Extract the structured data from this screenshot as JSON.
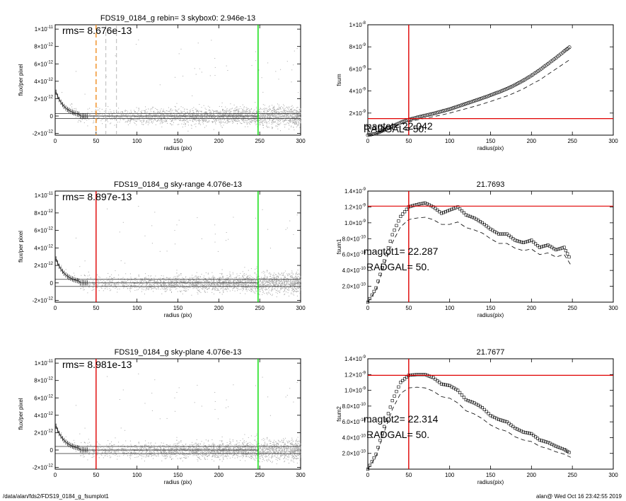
{
  "footer": {
    "left": "/data/alan/fds2/FDS19_0184_g_fsumplot1",
    "right": "alan@  Wed Oct 16 23:42:55 2019"
  },
  "colors": {
    "red": "#e00000",
    "green": "#00dd00",
    "orange": "#f08c1e",
    "gray": "#a8a8a8",
    "black": "#000000"
  },
  "chart_data": [
    {
      "type": "scatter",
      "title": "FDS19_0184_g rebin= 3    skybox0:  2.946e-13",
      "xlabel": "radius (pix)",
      "ylabel": "flux/per pixel",
      "xlim": [
        0,
        300
      ],
      "ylim": [
        -2.2e-12,
        1.05e-11
      ],
      "xticks": [
        0,
        50,
        100,
        150,
        200,
        250,
        300
      ],
      "yticks": [
        -2e-12,
        0,
        2e-12,
        4e-12,
        6e-12,
        8e-12,
        1e-11
      ],
      "ytick_labels": [
        [
          "-2×10",
          "-12"
        ],
        [
          "0",
          ""
        ],
        [
          "2×10",
          "-12"
        ],
        [
          "4×10",
          "-12"
        ],
        [
          "6×10",
          "-12"
        ],
        [
          "8×10",
          "-12"
        ],
        [
          "1×10",
          "-11"
        ]
      ],
      "annotations": [
        "rms= 8.676e-13"
      ],
      "hlines": [
        2.946e-13,
        -2.946e-13
      ],
      "vlines": [
        {
          "x": 50,
          "color": "orange",
          "style": "dashed"
        },
        {
          "x": 62,
          "color": "gray",
          "style": "dashed"
        },
        {
          "x": 75,
          "color": "gray",
          "style": "dashed"
        },
        {
          "x": 248,
          "color": "green",
          "style": "solid"
        }
      ]
    },
    {
      "type": "line",
      "title": "",
      "xlabel": "radius(pix)",
      "ylabel": "fsum",
      "xlim": [
        0,
        300
      ],
      "ylim": [
        0,
        1e-08
      ],
      "xticks": [
        0,
        50,
        100,
        150,
        200,
        250,
        300
      ],
      "yticks": [
        2e-09,
        4e-09,
        6e-09,
        8e-09,
        1e-08
      ],
      "ytick_labels": [
        [
          "2×10",
          "-9"
        ],
        [
          "4×10",
          "-9"
        ],
        [
          "6×10",
          "-9"
        ],
        [
          "8×10",
          "-9"
        ],
        [
          "1×10",
          "-8"
        ]
      ],
      "x": [
        0,
        10,
        20,
        30,
        40,
        50,
        60,
        70,
        80,
        90,
        100,
        110,
        120,
        130,
        140,
        150,
        160,
        170,
        180,
        190,
        200,
        210,
        220,
        230,
        240,
        248
      ],
      "series": [
        {
          "values": [
            0,
            1.5e-10,
            4.5e-10,
            8e-10,
            1.15e-09,
            1.4e-09,
            1.6e-09,
            1.78e-09,
            1.95e-09,
            2.15e-09,
            2.35e-09,
            2.6e-09,
            2.85e-09,
            3.1e-09,
            3.35e-09,
            3.62e-09,
            3.9e-09,
            4.2e-09,
            4.55e-09,
            4.95e-09,
            5.4e-09,
            5.9e-09,
            6.45e-09,
            7e-09,
            7.6e-09,
            8.05e-09
          ]
        },
        {
          "values": [
            0,
            1.3e-10,
            3.9e-10,
            7e-10,
            1e-09,
            1.2e-09,
            1.38e-09,
            1.53e-09,
            1.67e-09,
            1.83e-09,
            2e-09,
            2.2e-09,
            2.4e-09,
            2.6e-09,
            2.82e-09,
            3.05e-09,
            3.3e-09,
            3.55e-09,
            3.85e-09,
            4.2e-09,
            4.6e-09,
            5e-09,
            5.5e-09,
            6e-09,
            6.5e-09,
            6.9e-09
          ]
        }
      ],
      "annotations": [
        "magtot= 22.042",
        "RADGAL=    50."
      ],
      "hline": 1.5e-09,
      "vline": 50
    },
    {
      "type": "scatter",
      "title": "FDS19_0184_g sky-range  4.076e-13",
      "xlabel": "radius (pix)",
      "ylabel": "flux/per pixel",
      "xlim": [
        0,
        300
      ],
      "ylim": [
        -2.2e-12,
        1.05e-11
      ],
      "xticks": [
        0,
        50,
        100,
        150,
        200,
        250,
        300
      ],
      "yticks": [
        -2e-12,
        0,
        2e-12,
        4e-12,
        6e-12,
        8e-12,
        1e-11
      ],
      "ytick_labels": [
        [
          "-2×10",
          "-12"
        ],
        [
          "0",
          ""
        ],
        [
          "2×10",
          "-12"
        ],
        [
          "4×10",
          "-12"
        ],
        [
          "6×10",
          "-12"
        ],
        [
          "8×10",
          "-12"
        ],
        [
          "1×10",
          "-11"
        ]
      ],
      "annotations": [
        "rms= 8.897e-13"
      ],
      "hlines": [
        4.076e-13,
        -4.076e-13
      ],
      "vlines": [
        {
          "x": 50,
          "color": "red",
          "style": "solid"
        },
        {
          "x": 248,
          "color": "green",
          "style": "solid"
        }
      ]
    },
    {
      "type": "line",
      "title": "21.7693",
      "xlabel": "radius(pix)",
      "ylabel": "fsum1",
      "xlim": [
        0,
        300
      ],
      "ylim": [
        0,
        1.4e-09
      ],
      "xticks": [
        0,
        50,
        100,
        150,
        200,
        250,
        300
      ],
      "yticks": [
        2e-10,
        4e-10,
        6e-10,
        8e-10,
        1e-09,
        1.2e-09,
        1.4e-09
      ],
      "ytick_labels": [
        [
          "2.0×10",
          "-10"
        ],
        [
          "4.0×10",
          "-10"
        ],
        [
          "6.0×10",
          "-10"
        ],
        [
          "8.0×10",
          "-10"
        ],
        [
          "1.0×10",
          "-9"
        ],
        [
          "1.2×10",
          "-9"
        ],
        [
          "1.4×10",
          "-9"
        ]
      ],
      "x": [
        0,
        10,
        20,
        30,
        40,
        50,
        60,
        70,
        80,
        90,
        100,
        110,
        120,
        130,
        140,
        150,
        160,
        170,
        180,
        190,
        200,
        210,
        220,
        230,
        240,
        248
      ],
      "series": [
        {
          "values": [
            0,
            1.8e-10,
            5.2e-10,
            8.5e-10,
            1.08e-09,
            1.2e-09,
            1.23e-09,
            1.25e-09,
            1.2e-09,
            1.12e-09,
            1.16e-09,
            1.2e-09,
            1.1e-09,
            1.06e-09,
            1e-09,
            9.2e-10,
            8.6e-10,
            8.6e-10,
            7.8e-10,
            7.5e-10,
            7.8e-10,
            6.9e-10,
            7.2e-10,
            6.6e-10,
            6.9e-10,
            5.3e-10
          ]
        },
        {
          "values": [
            0,
            1.5e-10,
            4.6e-10,
            7.5e-10,
            9.5e-10,
            1.04e-09,
            1.06e-09,
            1.07e-09,
            1.04e-09,
            9.8e-10,
            9.8e-10,
            1.01e-09,
            9.4e-10,
            9.1e-10,
            8.7e-10,
            8e-10,
            7.4e-10,
            7.4e-10,
            6.8e-10,
            6.5e-10,
            6.7e-10,
            6e-10,
            6.2e-10,
            5.7e-10,
            6e-10,
            4.7e-10
          ]
        }
      ],
      "annotations": [
        "magtot1= 22.287",
        "RADGAL=    50."
      ],
      "hline": 1.21e-09,
      "vline": 50
    },
    {
      "type": "scatter",
      "title": "FDS19_0184_g sky-plane  4.076e-13",
      "xlabel": "radius (pix)",
      "ylabel": "flux/per pixel",
      "xlim": [
        0,
        300
      ],
      "ylim": [
        -2.2e-12,
        1.05e-11
      ],
      "xticks": [
        0,
        50,
        100,
        150,
        200,
        250,
        300
      ],
      "yticks": [
        -2e-12,
        0,
        2e-12,
        4e-12,
        6e-12,
        8e-12,
        1e-11
      ],
      "ytick_labels": [
        [
          "-2×10",
          "-12"
        ],
        [
          "0",
          ""
        ],
        [
          "2×10",
          "-12"
        ],
        [
          "4×10",
          "-12"
        ],
        [
          "6×10",
          "-12"
        ],
        [
          "8×10",
          "-12"
        ],
        [
          "1×10",
          "-11"
        ]
      ],
      "annotations": [
        "rms= 8.981e-13"
      ],
      "hlines": [
        4.076e-13,
        -4.076e-13
      ],
      "vlines": [
        {
          "x": 50,
          "color": "red",
          "style": "solid"
        },
        {
          "x": 248,
          "color": "green",
          "style": "solid"
        }
      ]
    },
    {
      "type": "line",
      "title": "21.7677",
      "xlabel": "radius(pix)",
      "ylabel": "fsum2",
      "xlim": [
        0,
        300
      ],
      "ylim": [
        0,
        1.4e-09
      ],
      "xticks": [
        0,
        50,
        100,
        150,
        200,
        250,
        300
      ],
      "yticks": [
        2e-10,
        4e-10,
        6e-10,
        8e-10,
        1e-09,
        1.2e-09,
        1.4e-09
      ],
      "ytick_labels": [
        [
          "2.0×10",
          "-10"
        ],
        [
          "4.0×10",
          "-10"
        ],
        [
          "6.0×10",
          "-10"
        ],
        [
          "8.0×10",
          "-10"
        ],
        [
          "1.0×10",
          "-9"
        ],
        [
          "1.2×10",
          "-9"
        ],
        [
          "1.4×10",
          "-9"
        ]
      ],
      "x": [
        0,
        10,
        20,
        30,
        40,
        50,
        60,
        70,
        80,
        90,
        100,
        110,
        120,
        130,
        140,
        150,
        160,
        170,
        180,
        190,
        200,
        210,
        220,
        230,
        240,
        248
      ],
      "series": [
        {
          "values": [
            0,
            1.9e-10,
            5.4e-10,
            8.7e-10,
            1.1e-09,
            1.19e-09,
            1.2e-09,
            1.2e-09,
            1.16e-09,
            1.08e-09,
            1.06e-09,
            1e-09,
            8.8e-10,
            8.4e-10,
            7.8e-10,
            6.8e-10,
            6.3e-10,
            6e-10,
            5.2e-10,
            4.7e-10,
            4.5e-10,
            3.7e-10,
            3.4e-10,
            2.9e-10,
            2.5e-10,
            2e-10
          ]
        },
        {
          "values": [
            0,
            1.6e-10,
            4.7e-10,
            7.6e-10,
            9.6e-10,
            1.03e-09,
            1.04e-09,
            1.03e-09,
            9.9e-10,
            9.2e-10,
            9e-10,
            8.4e-10,
            7.4e-10,
            7e-10,
            6.4e-10,
            5.6e-10,
            5.1e-10,
            4.8e-10,
            4.1e-10,
            3.7e-10,
            3.5e-10,
            2.9e-10,
            2.6e-10,
            2.2e-10,
            1.9e-10,
            1.5e-10
          ]
        }
      ],
      "annotations": [
        "magtot2= 22.314",
        "RADGAL=    50."
      ],
      "hline": 1.19e-09,
      "vline": 50
    }
  ]
}
